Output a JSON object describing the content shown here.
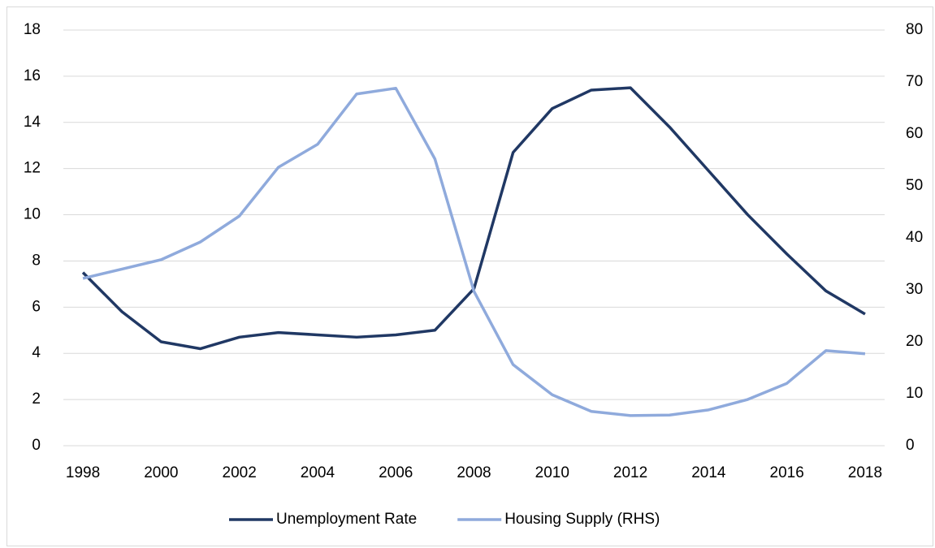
{
  "chart_data": {
    "type": "line",
    "x": [
      1998,
      1999,
      2000,
      2001,
      2002,
      2003,
      2004,
      2005,
      2006,
      2007,
      2008,
      2009,
      2010,
      2011,
      2012,
      2013,
      2014,
      2015,
      2016,
      2017,
      2018
    ],
    "xlim": [
      1997.5,
      2018.5
    ],
    "xticks": [
      1998,
      2000,
      2002,
      2004,
      2006,
      2008,
      2010,
      2012,
      2014,
      2016,
      2018
    ],
    "ylim": [
      0,
      18
    ],
    "yticks": [
      0,
      2,
      4,
      6,
      8,
      10,
      12,
      14,
      16,
      18
    ],
    "y2lim": [
      0,
      80
    ],
    "y2ticks": [
      0,
      10,
      20,
      30,
      40,
      50,
      60,
      70,
      80
    ],
    "grid": true,
    "legend": "bottom",
    "series": [
      {
        "name": "Unemployment Rate",
        "color": "#203864",
        "values": [
          7.5,
          5.8,
          4.5,
          4.2,
          4.7,
          4.9,
          4.8,
          4.7,
          4.8,
          5.0,
          6.8,
          12.7,
          14.6,
          15.4,
          15.5,
          13.8,
          11.9,
          10.0,
          8.3,
          6.7,
          5.7
        ]
      },
      {
        "name": "Housing Supply (RHS)",
        "color": "#8faadc",
        "axis": "y2",
        "values": [
          32.2,
          34,
          35.8,
          39.2,
          44.2,
          53.6,
          58,
          67.7,
          68.8,
          55.2,
          29.7,
          15.6,
          9.8,
          6.6,
          5.8,
          5.9,
          6.9,
          8.9,
          12,
          18.3,
          17.7
        ]
      }
    ]
  }
}
